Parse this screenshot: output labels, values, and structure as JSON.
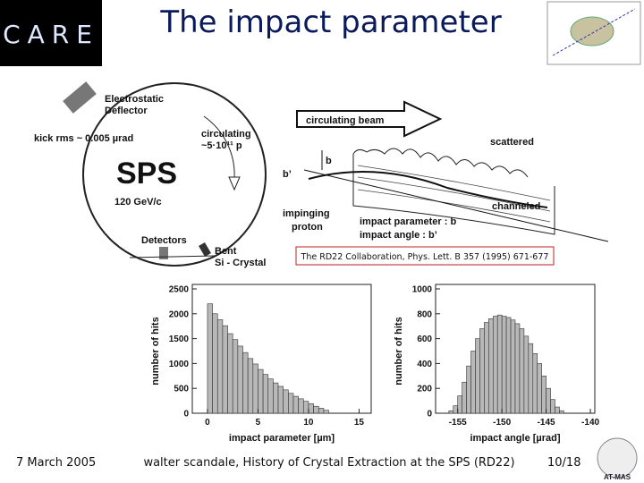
{
  "slide": {
    "title": "The impact parameter",
    "logo": "CARE",
    "footer_date": "7 March 2005",
    "footer_text": "walter scandale, History of Crystal Extraction at the SPS (RD22)",
    "page": "10/18",
    "corner_logo": "AT-MAS"
  },
  "diagram": {
    "deflector": [
      "Electrostatic",
      "Deflector"
    ],
    "circulating": [
      "circulating",
      "~5·10¹¹ p"
    ],
    "kick": "kick rms ~ 0.005 µrad",
    "ring": "SPS",
    "energy": "120 GeV/c",
    "detectors": "Detectors",
    "crystal": [
      "Bent",
      "Si - Crystal"
    ],
    "beam": "circulating beam",
    "scattered": "scattered",
    "b": "b",
    "b_prime": "b’",
    "impinging": [
      "impinging",
      "proton"
    ],
    "channeled": "channeled",
    "param_b": "impact parameter : b",
    "param_angle": "impact angle : b’",
    "citation": "The RD22 Collaboration, Phys. Lett. B 357 (1995) 671-677"
  },
  "chart_data": [
    {
      "type": "histogram",
      "xlabel": "impact parameter [µm]",
      "ylabel": "number of hits",
      "bins": [
        0,
        0.5,
        1,
        1.5,
        2,
        2.5,
        3,
        3.5,
        4,
        4.5,
        5,
        5.5,
        6,
        6.5,
        7,
        7.5,
        8,
        8.5,
        9,
        9.5,
        10,
        10.5,
        11,
        11.5,
        12
      ],
      "values": [
        2200,
        2000,
        1880,
        1760,
        1600,
        1480,
        1350,
        1220,
        1100,
        990,
        880,
        780,
        690,
        610,
        540,
        470,
        400,
        340,
        290,
        240,
        190,
        140,
        100,
        60
      ],
      "color": "#b8b8b8",
      "xlim": [
        -1.5,
        16.2
      ],
      "xticks": [
        0,
        5,
        10,
        15
      ],
      "ylim": [
        0,
        2500
      ],
      "yticks": [
        0,
        500,
        1000,
        1500,
        2000,
        2500
      ]
    },
    {
      "type": "histogram",
      "xlabel": "impact angle [µrad]",
      "ylabel": "number of hits",
      "bins": [
        -156,
        -155.5,
        -155,
        -154.5,
        -154,
        -153.5,
        -153,
        -152.5,
        -152,
        -151.5,
        -151,
        -150.5,
        -150,
        -149.5,
        -149,
        -148.5,
        -148,
        -147.5,
        -147,
        -146.5,
        -146,
        -145.5,
        -145,
        -144.5,
        -144,
        -143.5,
        -143
      ],
      "values": [
        20,
        60,
        140,
        250,
        380,
        500,
        600,
        680,
        730,
        760,
        780,
        790,
        780,
        770,
        750,
        720,
        680,
        620,
        560,
        480,
        400,
        300,
        200,
        110,
        50,
        20
      ],
      "color": "#b8b8b8",
      "xlim": [
        -157.5,
        -139.5
      ],
      "xticks": [
        -155,
        -150,
        -145,
        -140
      ],
      "ylim": [
        0,
        1000
      ],
      "yticks": [
        0,
        200,
        400,
        600,
        800,
        1000
      ]
    }
  ]
}
